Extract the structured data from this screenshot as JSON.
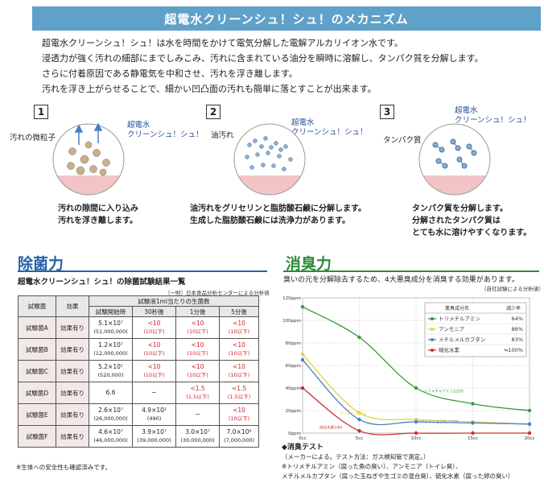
{
  "title": "超電水クリーンシュ！シュ！のメカニズム",
  "intro": [
    "超電水クリーンシュ！シュ！は水を時間をかけて電気分解した電解アルカリイオン水です。",
    "浸透力が強く汚れの細部にまでしみこみ、汚れに含まれている油分を瞬時に溶解し、タンパク質を分解します。",
    "さらに付着原因である静電気を中和させ、汚れを浮き離します。",
    "汚れを浮き上がらせることで、細かい凹凸面の汚れも簡単に落とすことが出来ます。"
  ],
  "steps": [
    {
      "num": "1",
      "label_left": "汚れの微粒子",
      "label_water": [
        "超電水",
        "クリーンシュ！シュ！"
      ],
      "caption": [
        "汚れの隙間に入り込み",
        "汚れを浮き離します。"
      ]
    },
    {
      "num": "2",
      "label_left": "油汚れ",
      "label_water": [
        "超電水",
        "クリーンシュ！シュ！"
      ],
      "caption": [
        "油汚れをグリセリンと脂肪酸石鹸に分解します。",
        "生成した脂肪酸石鹸には洗浄力があります。"
      ]
    },
    {
      "num": "3",
      "label_left": "タンパク質",
      "label_water": [
        "超電水",
        "クリーンシュ！シュ！"
      ],
      "caption": [
        "タンパク質を分解します。",
        "分解されたタンパク質は",
        "とても水に溶けやすくなります。"
      ]
    }
  ],
  "antibacterial": {
    "heading": "除菌力",
    "subtitle": "超電水クリーンシュ！シュ！の除菌試験結果一覧",
    "source": "（一財）日本食品分析センターによる分析値",
    "col_bacteria": "試験菌",
    "col_effect": "効果",
    "col_group": "試験液1ml当たりの生菌数",
    "col_times": [
      "試験開始時",
      "30秒後",
      "1分後",
      "5分後"
    ],
    "rows": [
      {
        "name": "試験菌A",
        "effect": "効果有り",
        "start": [
          "5.1×10⁷",
          "(51,000,000)"
        ],
        "s30": [
          "<10",
          "(10以下)"
        ],
        "m1": [
          "<10",
          "(10以下)"
        ],
        "m5": [
          "<10",
          "(10以下)"
        ]
      },
      {
        "name": "試験菌B",
        "effect": "効果有り",
        "start": [
          "1.2×10⁷",
          "(12,000,000)"
        ],
        "s30": [
          "<10",
          "(10以下)"
        ],
        "m1": [
          "<10",
          "(10以下)"
        ],
        "m5": [
          "<10",
          "(10以下)"
        ]
      },
      {
        "name": "試験菌C",
        "effect": "効果有り",
        "start": [
          "5.2×10⁵",
          "(520,000)"
        ],
        "s30": [
          "<10",
          "(10以下)"
        ],
        "m1": [
          "<10",
          "(10以下)"
        ],
        "m5": [
          "<10",
          "(10以下)"
        ]
      },
      {
        "name": "試験菌D",
        "effect": "効果有り",
        "start": [
          "6.6",
          ""
        ],
        "s30": [
          "−",
          ""
        ],
        "m1": [
          "<1.5",
          "(1.5以下)"
        ],
        "m5": [
          "<1.5",
          "(1.5以下)"
        ]
      },
      {
        "name": "試験菌E",
        "effect": "効果有り",
        "start": [
          "2.6×10⁷",
          "(26,000,000)"
        ],
        "s30": [
          "4.9×10²",
          "(490)"
        ],
        "m1": [
          "−",
          ""
        ],
        "m5": [
          "<10",
          "(10以下)"
        ]
      },
      {
        "name": "試験菌F",
        "effect": "効果有り",
        "start": [
          "4.6×10⁷",
          "(46,000,000)"
        ],
        "s30": [
          "3.9×10⁷",
          "(39,000,000)"
        ],
        "m1": [
          "3.0×10⁷",
          "(30,000,000)"
        ],
        "m5": [
          "7.0×10⁶",
          "(7,000,000)"
        ]
      }
    ],
    "footnote": "※生体への安全性も確認済みです。"
  },
  "deodorant": {
    "heading": "消臭力",
    "subtitle": "臭いの元を分解除去するため、4大悪臭成分を消臭する効果があります。",
    "source": "（自社試験による分析値）",
    "legend_header": [
      "悪臭成分名",
      "減少率"
    ],
    "test_title": "◆消臭テスト",
    "test_notes": [
      "（メーカーによる。テスト方法：ガス検知管で測定。）",
      "※トリメチルアミン（腐った魚の臭い）、アンモニア（トイレ臭）、",
      "メチルメルカプタン（腐った玉ねぎや生ゴミの混合臭）、硫化水素（腐った卵の臭い）"
    ]
  },
  "chart_data": {
    "type": "line",
    "title": "消臭テスト",
    "xlabel": "",
    "ylabel": "",
    "x": [
      0,
      5,
      10,
      15,
      20
    ],
    "x_tick_labels": [
      "0cc",
      "5cc",
      "10cc",
      "15cc",
      "20cc"
    ],
    "y_tick_labels": [
      "0ppm",
      "20ppm",
      "40ppm",
      "60ppm",
      "80ppm",
      "100ppm",
      "120ppm"
    ],
    "ylim": [
      0,
      120
    ],
    "xlim": [
      0,
      20
    ],
    "series": [
      {
        "name": "トリメチルアミン",
        "rate": "64%",
        "color": "#3a9a3a",
        "values": [
          112,
          85,
          40,
          26,
          20
        ],
        "curve_label": "トリメチルアミン1/250"
      },
      {
        "name": "アンモニア",
        "rate": "88%",
        "color": "#e6d43c",
        "values": [
          70,
          18,
          12,
          10,
          8
        ],
        "curve_label": "アンモニア1/20"
      },
      {
        "name": "メチルメルカプタン",
        "rate": "83%",
        "color": "#4a7fc8",
        "values": [
          65,
          12,
          10,
          9,
          8
        ],
        "curve_label": "メチルメルカプタン1/20"
      },
      {
        "name": "硫化水素",
        "rate": "≒100%",
        "color": "#c83030",
        "values": [
          40,
          2,
          0,
          0,
          0
        ],
        "curve_label": "硫化水素1/60"
      }
    ]
  }
}
